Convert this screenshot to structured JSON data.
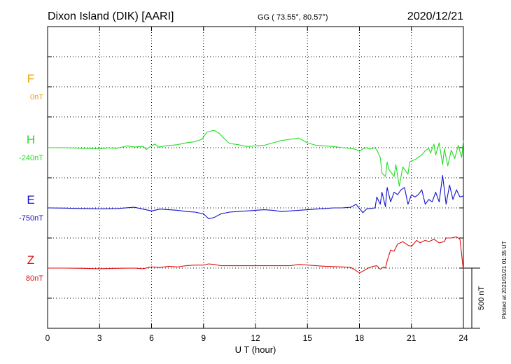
{
  "header": {
    "station": "Dixon Island (DIK)  [AARI]",
    "coords": "GG ( 73.55°,  80.57°)",
    "date": "2020/12/21"
  },
  "plotted_note": "Plotted at 2021/01/21 01:35 UT",
  "colors": {
    "F": "#f0a000",
    "H": "#22dd22",
    "E": "#1010cc",
    "Z": "#dd1111",
    "grid": "#000000"
  },
  "chart_data": {
    "type": "line",
    "xlabel": "U T (hour)",
    "xlim": [
      0,
      24
    ],
    "xticks": [
      "0",
      "3",
      "6",
      "9",
      "12",
      "15",
      "18",
      "21",
      "24"
    ],
    "scale_bar": {
      "label": "500 nT",
      "value_nT": 500
    },
    "series": [
      {
        "name": "F",
        "baseline_label": "0nT",
        "x": [],
        "y": []
      },
      {
        "name": "H",
        "baseline_label": "-240nT",
        "x": [
          0,
          1,
          2,
          3,
          3.5,
          4,
          4.6,
          5,
          5.5,
          5.7,
          5.8,
          6,
          6.2,
          6.4,
          6.8,
          7.5,
          8,
          8.5,
          8.9,
          9.2,
          9.6,
          9.9,
          10.2,
          10.5,
          11,
          11.5,
          12,
          12.5,
          13,
          13.5,
          14,
          14.5,
          14.8,
          15,
          15.5,
          16,
          16.5,
          17,
          17.5,
          17.8,
          18,
          18.2,
          18.4,
          18.6,
          18.9,
          19,
          19.2,
          19.3,
          19.5,
          19.6,
          19.7,
          19.9,
          20,
          20.1,
          20.3,
          20.5,
          20.6,
          20.8,
          20.9,
          21,
          21.2,
          21.4,
          21.6,
          21.8,
          22,
          22.1,
          22.3,
          22.4,
          22.6,
          22.8,
          22.9,
          23.1,
          23.3,
          23.5,
          23.7,
          23.9,
          24
        ],
        "y": [
          -240,
          -240,
          -245,
          -250,
          -242,
          -245,
          -225,
          -235,
          -228,
          -255,
          -242,
          -225,
          -210,
          -235,
          -225,
          -215,
          -200,
          -190,
          -170,
          -110,
          -95,
          -120,
          -165,
          -205,
          -215,
          -230,
          -225,
          -220,
          -200,
          -180,
          -170,
          -160,
          -185,
          -200,
          -220,
          -225,
          -230,
          -240,
          -245,
          -255,
          -270,
          -250,
          -240,
          -252,
          -240,
          -260,
          -320,
          -450,
          -480,
          -360,
          -420,
          -460,
          -480,
          -380,
          -560,
          -400,
          -420,
          -460,
          -360,
          -350,
          -340,
          -320,
          -300,
          -265,
          -245,
          -285,
          -210,
          -300,
          -200,
          -380,
          -250,
          -390,
          -260,
          -330,
          -220,
          -320,
          -180
        ]
      },
      {
        "name": "E",
        "baseline_label": "-750nT",
        "x": [
          0,
          1,
          2,
          3,
          4,
          5,
          5.5,
          6,
          6.5,
          7,
          7.5,
          8,
          8.5,
          9,
          9.3,
          9.6,
          10,
          10.5,
          11,
          11.5,
          12,
          12.5,
          13,
          13.5,
          14,
          14.5,
          15,
          15.5,
          16,
          16.5,
          17,
          17.5,
          17.8,
          18,
          18.2,
          18.4,
          18.6,
          18.9,
          19,
          19.2,
          19.3,
          19.5,
          19.6,
          19.8,
          20,
          20.2,
          20.4,
          20.6,
          20.8,
          21,
          21.2,
          21.4,
          21.6,
          21.8,
          22,
          22.2,
          22.4,
          22.6,
          22.8,
          23,
          23.2,
          23.4,
          23.6,
          23.8,
          24
        ],
        "y": [
          -750,
          -752,
          -755,
          -758,
          -755,
          -745,
          -760,
          -775,
          -760,
          -765,
          -770,
          -780,
          -785,
          -800,
          -840,
          -830,
          -800,
          -785,
          -780,
          -775,
          -770,
          -765,
          -770,
          -780,
          -775,
          -770,
          -765,
          -760,
          -755,
          -750,
          -750,
          -745,
          -720,
          -755,
          -790,
          -760,
          -755,
          -750,
          -660,
          -720,
          -620,
          -740,
          -580,
          -700,
          -620,
          -640,
          -600,
          -580,
          -720,
          -640,
          -660,
          -640,
          -600,
          -720,
          -680,
          -700,
          -620,
          -700,
          -480,
          -720,
          -560,
          -680,
          -600,
          -660,
          -650
        ]
      },
      {
        "name": "Z",
        "baseline_label": "80nT",
        "x": [
          0,
          1,
          2,
          3,
          4,
          5,
          5.5,
          6,
          6.5,
          7,
          7.5,
          8,
          8.5,
          9,
          9.3,
          9.6,
          10,
          11,
          12,
          13,
          14,
          14.5,
          15,
          15.5,
          16,
          17,
          17.5,
          17.8,
          18,
          18.2,
          18.5,
          18.8,
          19,
          19.2,
          19.4,
          19.5,
          19.6,
          19.8,
          20,
          20.2,
          20.5,
          20.8,
          21,
          21.3,
          21.5,
          21.8,
          22,
          22.3,
          22.6,
          22.9,
          23,
          23.3,
          23.6,
          23.8,
          24
        ],
        "y": [
          80,
          80,
          78,
          75,
          78,
          80,
          75,
          90,
          85,
          95,
          90,
          100,
          105,
          105,
          115,
          110,
          100,
          100,
          100,
          100,
          100,
          110,
          105,
          100,
          95,
          90,
          85,
          60,
          40,
          55,
          80,
          95,
          100,
          70,
          90,
          80,
          140,
          230,
          220,
          280,
          300,
          270,
          260,
          310,
          290,
          310,
          300,
          320,
          290,
          300,
          330,
          330,
          340,
          320,
          60
        ]
      }
    ]
  }
}
